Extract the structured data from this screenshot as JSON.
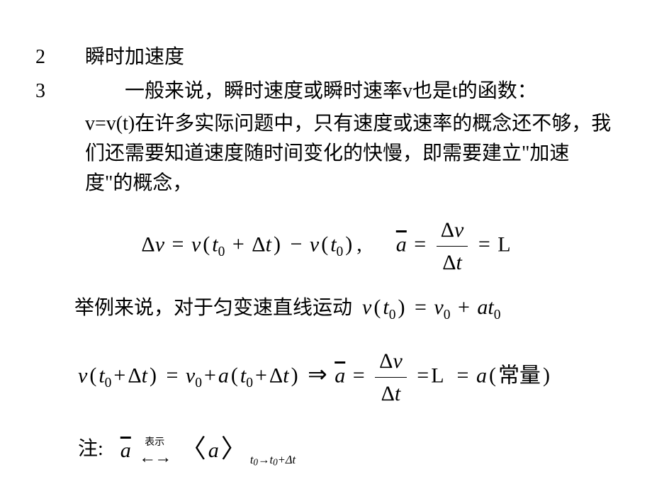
{
  "background_color": "#ffffff",
  "text_color": "#000000",
  "base_fontsize_pt": 21,
  "math_fontsize_pt": 22,
  "font_family_cn": "SimSun",
  "font_family_math": "Times New Roman",
  "items": {
    "num2": "2",
    "title2": "瞬时加速度",
    "num3": "3",
    "para3_lead": "一般来说，瞬时速度或瞬时速率v也是t的函数：",
    "para3_rest": "v=v(t)在许多实际问题中，只有速度或速率的概念还不够，我们还需要知道速度随时间变化的快慢，即需要建立\"加速度\"的概念，"
  },
  "eq1": {
    "delta_v": "Δ",
    "v": "v",
    "eq": "=",
    "t0": "t",
    "sub0": "0",
    "plus": "+",
    "delta_t": "Δ",
    "t": "t",
    "minus": "−",
    "comma": ",",
    "abar": "a",
    "frac_num": "Δv",
    "frac_den": "Δt",
    "L": "L"
  },
  "line_example_cn": "举例来说，对于匀变速直线运动",
  "eq_vt0": {
    "v": "v",
    "t": "t",
    "sub0": "0",
    "eq": "=",
    "v0": "v",
    "plus": "+",
    "a": "a"
  },
  "eq2": {
    "arrow": "⇒",
    "const_cn": "常量"
  },
  "note": {
    "label": "注:",
    "tiny": "表示",
    "arrows": "←→",
    "angleL": "〈",
    "angleR": "〉",
    "sub_expr": "t₀→t₀+Δt"
  }
}
